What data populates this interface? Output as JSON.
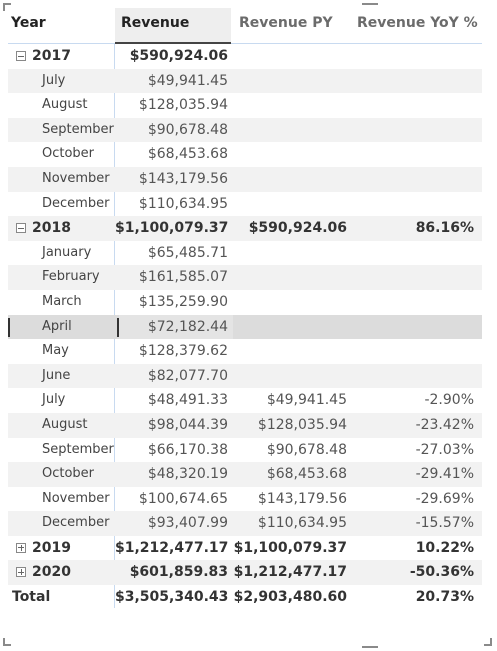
{
  "headers": {
    "year": "Year",
    "revenue": "Revenue",
    "revenue_py": "Revenue PY",
    "revenue_yoy": "Revenue YoY %"
  },
  "rows": [
    {
      "kind": "year",
      "label": "2017",
      "expanded": true,
      "revenue": "$590,924.06",
      "revenue_py": "",
      "yoy": ""
    },
    {
      "kind": "month",
      "label": "July",
      "revenue": "$49,941.45",
      "revenue_py": "",
      "yoy": ""
    },
    {
      "kind": "month",
      "label": "August",
      "revenue": "$128,035.94",
      "revenue_py": "",
      "yoy": ""
    },
    {
      "kind": "month",
      "label": "September",
      "revenue": "$90,678.48",
      "revenue_py": "",
      "yoy": ""
    },
    {
      "kind": "month",
      "label": "October",
      "revenue": "$68,453.68",
      "revenue_py": "",
      "yoy": ""
    },
    {
      "kind": "month",
      "label": "November",
      "revenue": "$143,179.56",
      "revenue_py": "",
      "yoy": ""
    },
    {
      "kind": "month",
      "label": "December",
      "revenue": "$110,634.95",
      "revenue_py": "",
      "yoy": ""
    },
    {
      "kind": "year",
      "label": "2018",
      "expanded": true,
      "revenue": "$1,100,079.37",
      "revenue_py": "$590,924.06",
      "yoy": "86.16%"
    },
    {
      "kind": "month",
      "label": "January",
      "revenue": "$65,485.71",
      "revenue_py": "",
      "yoy": ""
    },
    {
      "kind": "month",
      "label": "February",
      "revenue": "$161,585.07",
      "revenue_py": "",
      "yoy": ""
    },
    {
      "kind": "month",
      "label": "March",
      "revenue": "$135,259.90",
      "revenue_py": "",
      "yoy": ""
    },
    {
      "kind": "month",
      "label": "April",
      "revenue": "$72,182.44",
      "revenue_py": "",
      "yoy": "",
      "selected": true
    },
    {
      "kind": "month",
      "label": "May",
      "revenue": "$128,379.62",
      "revenue_py": "",
      "yoy": ""
    },
    {
      "kind": "month",
      "label": "June",
      "revenue": "$82,077.70",
      "revenue_py": "",
      "yoy": ""
    },
    {
      "kind": "month",
      "label": "July",
      "revenue": "$48,491.33",
      "revenue_py": "$49,941.45",
      "yoy": "-2.90%"
    },
    {
      "kind": "month",
      "label": "August",
      "revenue": "$98,044.39",
      "revenue_py": "$128,035.94",
      "yoy": "-23.42%"
    },
    {
      "kind": "month",
      "label": "September",
      "revenue": "$66,170.38",
      "revenue_py": "$90,678.48",
      "yoy": "-27.03%"
    },
    {
      "kind": "month",
      "label": "October",
      "revenue": "$48,320.19",
      "revenue_py": "$68,453.68",
      "yoy": "-29.41%"
    },
    {
      "kind": "month",
      "label": "November",
      "revenue": "$100,674.65",
      "revenue_py": "$143,179.56",
      "yoy": "-29.69%"
    },
    {
      "kind": "month",
      "label": "December",
      "revenue": "$93,407.99",
      "revenue_py": "$110,634.95",
      "yoy": "-15.57%"
    },
    {
      "kind": "year",
      "label": "2019",
      "expanded": false,
      "revenue": "$1,212,477.17",
      "revenue_py": "$1,100,079.37",
      "yoy": "10.22%"
    },
    {
      "kind": "year",
      "label": "2020",
      "expanded": false,
      "revenue": "$601,859.83",
      "revenue_py": "$1,212,477.17",
      "yoy": "-50.36%"
    },
    {
      "kind": "total",
      "label": "Total",
      "revenue": "$3,505,340.43",
      "revenue_py": "$2,903,480.60",
      "yoy": "20.73%"
    }
  ],
  "icons": {
    "expanded": "collapse-minus-icon",
    "collapsed": "expand-plus-icon"
  }
}
